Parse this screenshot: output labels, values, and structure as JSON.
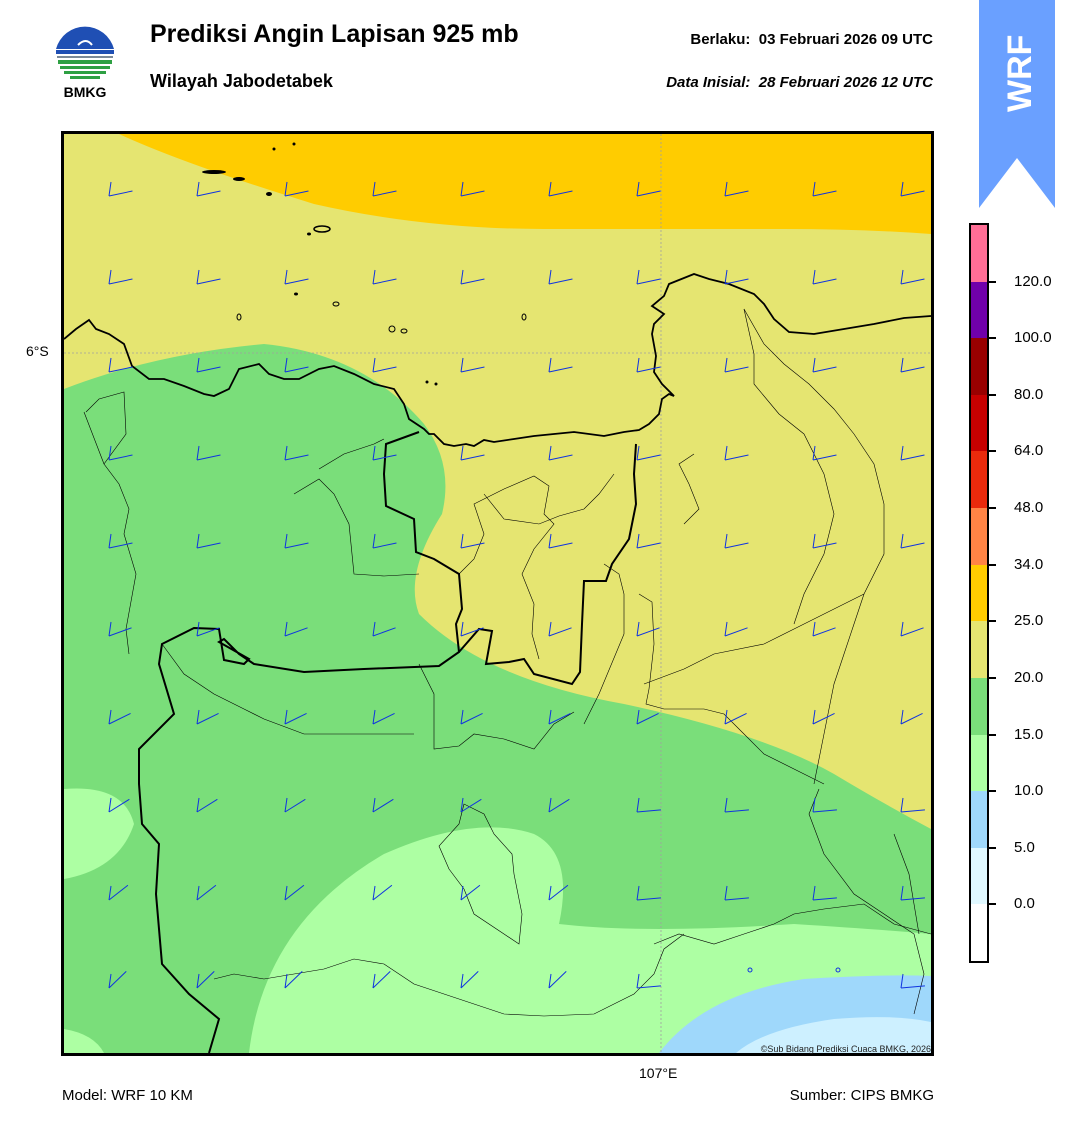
{
  "header": {
    "title": "Prediksi Angin Lapisan 925 mb",
    "subtitle": "Wilayah Jabodetabek",
    "valid_label": "Berlaku:",
    "valid_time": "03 Februari 2026 09 UTC",
    "init_label": "Data Inisial:",
    "init_time": "28 Februari 2026 12 UTC",
    "logo_text": "BMKG",
    "badge": "WRF"
  },
  "map": {
    "lat_label": "6°S",
    "lon_label": "107°E",
    "credit": "©Sub Bidang Prediksi Cuaca BMKG, 2026"
  },
  "legend": {
    "levels": [
      "0.0",
      "5.0",
      "10.0",
      "15.0",
      "20.0",
      "25.0",
      "34.0",
      "48.0",
      "64.0",
      "80.0",
      "100.0",
      "120.0"
    ],
    "colors": [
      "#ffffff",
      "#e0f8ff",
      "#9fd8fb",
      "#adffa3",
      "#7ade7a",
      "#e5e571",
      "#ffcc00",
      "#ff8445",
      "#ea2a0c",
      "#c70000",
      "#990000",
      "#7000aa",
      "#ff6e96"
    ]
  },
  "footer": {
    "model": "Model: WRF 10 KM",
    "source": "Sumber: CIPS BMKG"
  }
}
